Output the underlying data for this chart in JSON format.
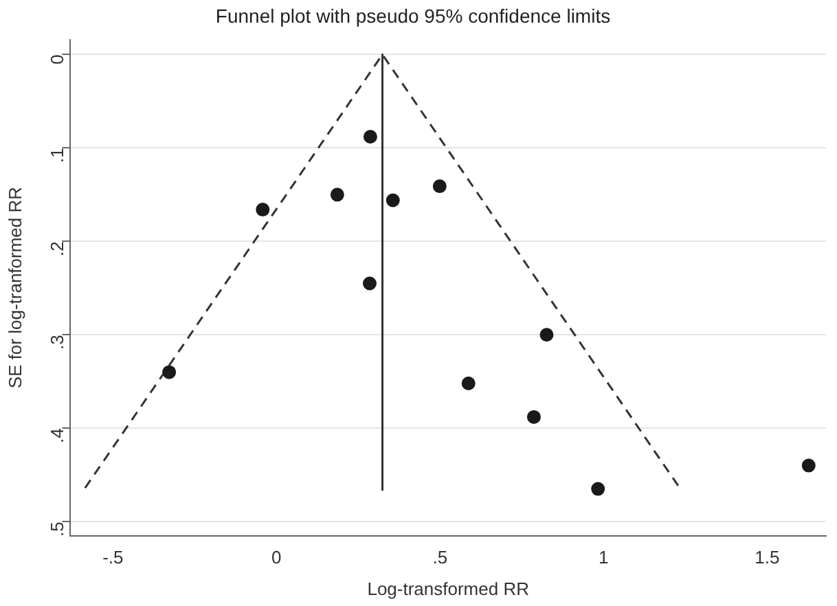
{
  "chart_data": {
    "type": "scatter",
    "title": "Funnel plot with pseudo 95% confidence limits",
    "xlabel": "Log-transformed RR",
    "ylabel": "SE for log-tranformed RR",
    "xlim": [
      -0.63,
      1.68
    ],
    "xticks": [
      {
        "value": -0.5,
        "label": "-.5"
      },
      0,
      {
        "value": 0.5,
        "label": ".5"
      },
      1,
      {
        "value": 1.5,
        "label": "1.5"
      }
    ],
    "ylim": [
      0.515,
      -0.016
    ],
    "yticks": [
      0,
      {
        "value": 0.1,
        "label": ".1"
      },
      {
        "value": 0.2,
        "label": ".2"
      },
      {
        "value": 0.3,
        "label": ".3"
      },
      {
        "value": 0.4,
        "label": ".4"
      },
      {
        "value": 0.5,
        "label": ".5"
      }
    ],
    "grid": "y",
    "legend": false,
    "series": [
      {
        "type": "scatter",
        "color": "#1a1a1a",
        "marker": "circle",
        "x": [
          0.287,
          0.186,
          0.356,
          -0.042,
          0.285,
          -0.328,
          0.499,
          0.826,
          0.587,
          0.787,
          0.983,
          1.627
        ],
        "values": [
          0.088,
          0.15,
          0.156,
          0.166,
          0.245,
          0.34,
          0.141,
          0.3,
          0.352,
          0.388,
          0.465,
          0.44
        ]
      },
      {
        "type": "line",
        "color": "#333333",
        "line_style": "dashed",
        "marker": "none",
        "x": [
          -0.585,
          0.324,
          1.233
        ],
        "values": [
          0.464,
          0,
          0.464
        ]
      },
      {
        "type": "line",
        "color": "#333333",
        "line_style": "solid",
        "marker": "none",
        "x": [
          0.324,
          0.324
        ],
        "values": [
          0,
          0.466
        ]
      }
    ]
  }
}
